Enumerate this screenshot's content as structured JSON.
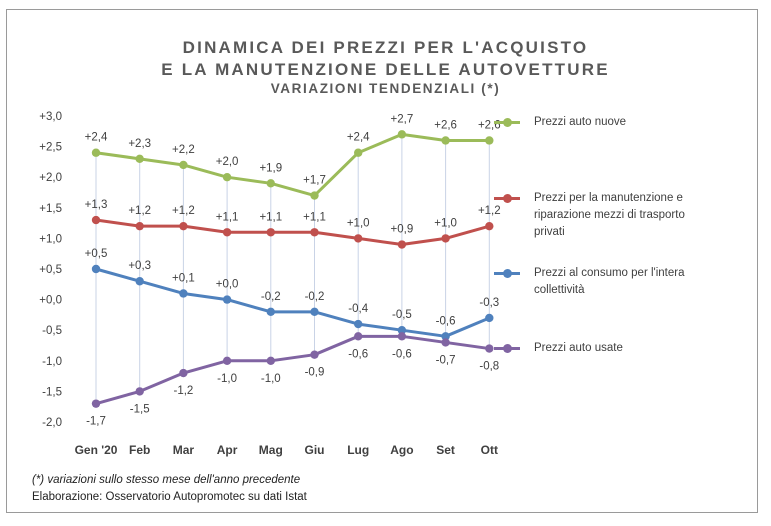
{
  "chart_data": {
    "type": "line",
    "title": "DINAMICA DEI PREZZI PER L'ACQUISTO",
    "title_line2": "E LA MANUTENZIONE DELLE AUTOVETTURE",
    "subtitle": "VARIAZIONI TENDENZIALI (*)",
    "categories": [
      "Gen '20",
      "Feb",
      "Mar",
      "Apr",
      "Mag",
      "Giu",
      "Lug",
      "Ago",
      "Set",
      "Ott"
    ],
    "ylim": [
      -2.0,
      3.0
    ],
    "yticks": [
      3.0,
      2.5,
      2.0,
      1.5,
      1.0,
      0.5,
      0.0,
      -0.5,
      -1.0,
      -1.5,
      -2.0
    ],
    "ytick_labels": [
      "+3,0",
      "+2,5",
      "+2,0",
      "+1,5",
      "+1,0",
      "+0,5",
      "+0,0",
      "-0,5",
      "-1,0",
      "-1,5",
      "-2,0"
    ],
    "series": [
      {
        "name": "Prezzi auto nuove",
        "color": "#9bbb59",
        "values": [
          2.4,
          2.3,
          2.2,
          2.0,
          1.9,
          1.7,
          2.4,
          2.7,
          2.6,
          2.6
        ],
        "labels": [
          "+2,4",
          "+2,3",
          "+2,2",
          "+2,0",
          "+1,9",
          "+1,7",
          "+2,4",
          "+2,7",
          "+2,6",
          "+2,6"
        ]
      },
      {
        "name": "Prezzi per la manutenzione e riparazione mezzi di trasporto privati",
        "legend_lines": [
          "Prezzi per la manutenzione e",
          "riparazione mezzi di trasporto",
          "privati"
        ],
        "color": "#c0504d",
        "values": [
          1.3,
          1.2,
          1.2,
          1.1,
          1.1,
          1.1,
          1.0,
          0.9,
          1.0,
          1.2
        ],
        "labels": [
          "+1,3",
          "+1,2",
          "+1,2",
          "+1,1",
          "+1,1",
          "+1,1",
          "+1,0",
          "+0,9",
          "+1,0",
          "+1,2"
        ]
      },
      {
        "name": "Prezzi al consumo per l'intera collettività",
        "legend_lines": [
          "Prezzi al consumo per l'intera",
          "collettività"
        ],
        "color": "#4f81bd",
        "values": [
          0.5,
          0.3,
          0.1,
          0.0,
          -0.2,
          -0.2,
          -0.4,
          -0.5,
          -0.6,
          -0.3
        ],
        "labels": [
          "+0,5",
          "+0,3",
          "+0,1",
          "+0,0",
          "-0,2",
          "-0,2",
          "-0,4",
          "-0,5",
          "-0,6",
          "-0,3"
        ]
      },
      {
        "name": "Prezzi auto usate",
        "color": "#8064a2",
        "values": [
          -1.7,
          -1.5,
          -1.2,
          -1.0,
          -1.0,
          -0.9,
          -0.6,
          -0.6,
          -0.7,
          -0.8
        ],
        "labels": [
          "-1,7",
          "-1,5",
          "-1,2",
          "-1,0",
          "-1,0",
          "-0,9",
          "-0,6",
          "-0,6",
          "-0,7",
          "-0,8"
        ]
      }
    ],
    "legend_position": "right",
    "grid": false,
    "drop_lines": true
  },
  "footnote": "(*) variazioni sullo stesso mese dell'anno precedente",
  "source": "Elaborazione: Osservatorio Autopromotec su dati Istat"
}
